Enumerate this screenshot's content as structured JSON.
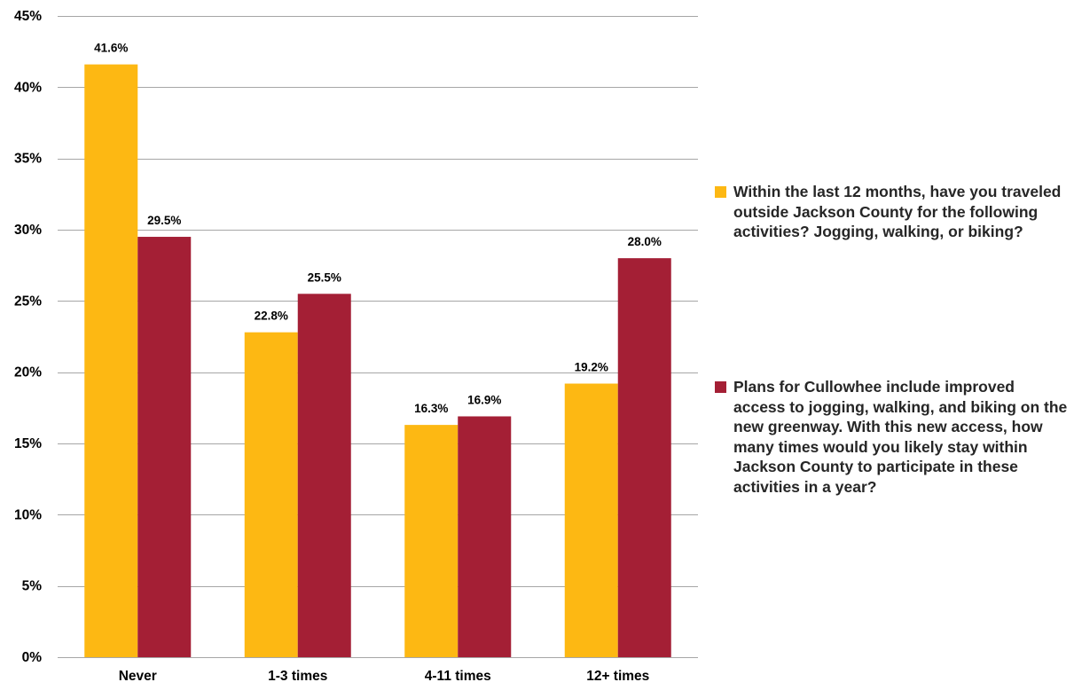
{
  "chart_data": {
    "type": "bar",
    "categories": [
      "Never",
      "1-3 times",
      "4-11 times",
      "12+ times"
    ],
    "series": [
      {
        "name": "Within the last 12 months, have you traveled outside Jackson County for the following activities? Jogging, walking, or biking?",
        "values": [
          41.6,
          22.8,
          16.3,
          19.2
        ],
        "labels": [
          "41.6%",
          "22.8%",
          "16.3%",
          "19.2%"
        ],
        "color": "#FDB813"
      },
      {
        "name": "Plans for Cullowhee include improved access to jogging, walking, and biking on the new greenway.  With this new access, how many times would you likely stay within Jackson County to participate in these activities in a year?",
        "values": [
          29.5,
          25.5,
          16.9,
          28.0
        ],
        "labels": [
          "29.5%",
          "25.5%",
          "16.9%",
          "28.0%"
        ],
        "color": "#A41F35"
      }
    ],
    "ylim": [
      0,
      45
    ],
    "yticks": [
      {
        "value": 0,
        "label": "0%"
      },
      {
        "value": 5,
        "label": "5%"
      },
      {
        "value": 10,
        "label": "10%"
      },
      {
        "value": 15,
        "label": "15%"
      },
      {
        "value": 20,
        "label": "20%"
      },
      {
        "value": 25,
        "label": "25%"
      },
      {
        "value": 30,
        "label": "30%"
      },
      {
        "value": 35,
        "label": "35%"
      },
      {
        "value": 40,
        "label": "40%"
      },
      {
        "value": 45,
        "label": "45%"
      }
    ],
    "grid": true,
    "gridline_color": "#A6A6A6",
    "legend_position": "right"
  }
}
